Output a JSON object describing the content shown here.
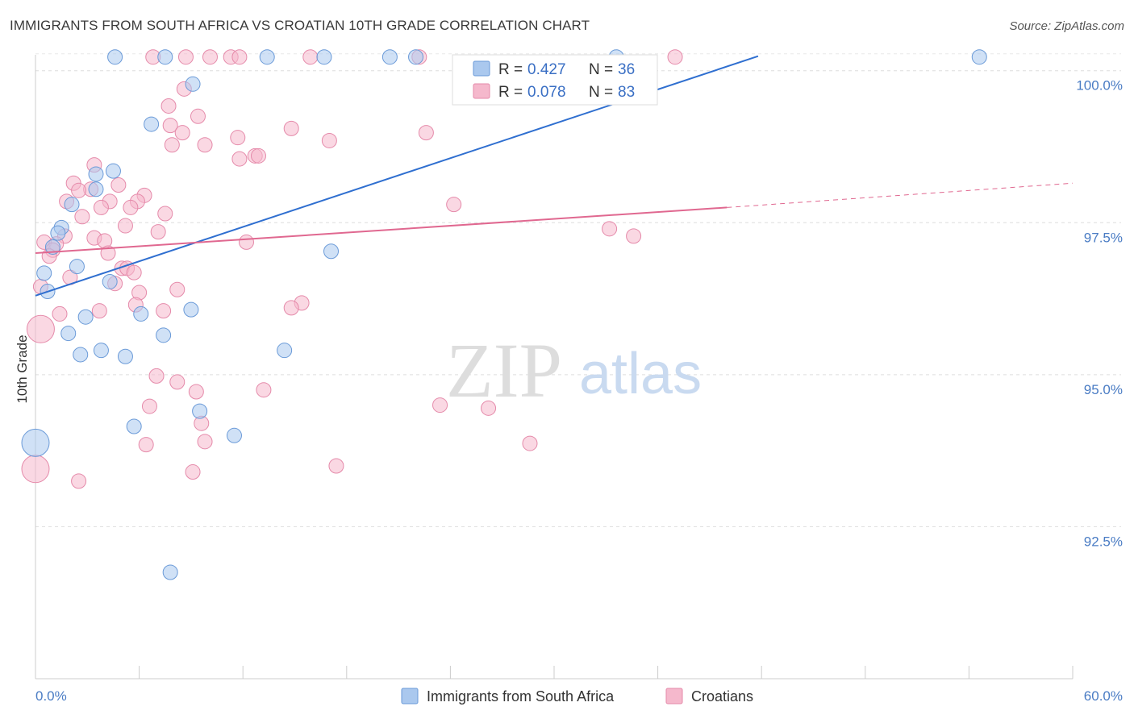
{
  "title": "IMMIGRANTS FROM SOUTH AFRICA VS CROATIAN 10TH GRADE CORRELATION CHART",
  "source": "Source: ZipAtlas.com",
  "watermark": {
    "zip": "ZIP",
    "atlas": "atlas"
  },
  "colors": {
    "blue_fill": "#aac8ee",
    "blue_stroke": "#6a9ad8",
    "blue_line": "#2f6fd0",
    "pink_fill": "#f5b8cc",
    "pink_stroke": "#e58aaa",
    "pink_line": "#e06890",
    "tick_text": "#4a7cc4",
    "grid": "#dddddd"
  },
  "legend": {
    "rows": [
      {
        "r_label": "R =",
        "r_value": "0.427",
        "n_label": "N =",
        "n_value": "36",
        "color": "blue"
      },
      {
        "r_label": "R =",
        "r_value": "0.078",
        "n_label": "N =",
        "n_value": "83",
        "color": "pink"
      }
    ]
  },
  "bottom_legend": [
    {
      "label": "Immigrants from South Africa",
      "color": "blue"
    },
    {
      "label": "Croatians",
      "color": "pink"
    }
  ],
  "chart_data": {
    "type": "scatter",
    "title": "IMMIGRANTS FROM SOUTH AFRICA VS CROATIAN 10TH GRADE CORRELATION CHART",
    "xlabel": "",
    "ylabel": "10th Grade",
    "xlim": [
      0,
      60
    ],
    "ylim": [
      90.0,
      100.5
    ],
    "x_tick_labels": [
      "0.0%",
      "60.0%"
    ],
    "y_ticks": [
      92.5,
      95.0,
      97.5,
      100.0
    ],
    "y_tick_labels": [
      "92.5%",
      "95.0%",
      "97.5%",
      "100.0%"
    ],
    "grid": true,
    "legend_position": "top-center",
    "series": [
      {
        "name": "Immigrants from South Africa",
        "color": "blue",
        "r": 0.427,
        "n": 36,
        "trend": {
          "x": [
            0.0,
            41.8
          ],
          "y": [
            96.3,
            100.0
          ],
          "dashed_to": null
        },
        "points": [
          {
            "x": 4.6,
            "y": 100.0,
            "s": 1
          },
          {
            "x": 7.5,
            "y": 100.0,
            "s": 1
          },
          {
            "x": 13.4,
            "y": 100.0,
            "s": 1
          },
          {
            "x": 16.7,
            "y": 100.0,
            "s": 1
          },
          {
            "x": 20.5,
            "y": 100.0,
            "s": 1
          },
          {
            "x": 22.0,
            "y": 100.0,
            "s": 1
          },
          {
            "x": 33.6,
            "y": 100.0,
            "s": 1
          },
          {
            "x": 54.6,
            "y": 100.0,
            "s": 1
          },
          {
            "x": 9.1,
            "y": 99.78,
            "s": 1
          },
          {
            "x": 6.7,
            "y": 99.12,
            "s": 1
          },
          {
            "x": 4.5,
            "y": 98.35,
            "s": 1
          },
          {
            "x": 3.5,
            "y": 98.3,
            "s": 1
          },
          {
            "x": 3.5,
            "y": 98.05,
            "s": 1
          },
          {
            "x": 2.1,
            "y": 97.8,
            "s": 1
          },
          {
            "x": 1.5,
            "y": 97.42,
            "s": 1
          },
          {
            "x": 1.3,
            "y": 97.33,
            "s": 1
          },
          {
            "x": 1.0,
            "y": 97.1,
            "s": 1
          },
          {
            "x": 17.1,
            "y": 97.03,
            "s": 1
          },
          {
            "x": 2.4,
            "y": 96.78,
            "s": 1
          },
          {
            "x": 0.5,
            "y": 96.67,
            "s": 1
          },
          {
            "x": 4.3,
            "y": 96.53,
            "s": 1
          },
          {
            "x": 0.7,
            "y": 96.37,
            "s": 1
          },
          {
            "x": 9.0,
            "y": 96.07,
            "s": 1
          },
          {
            "x": 6.1,
            "y": 96.0,
            "s": 1
          },
          {
            "x": 2.9,
            "y": 95.95,
            "s": 1
          },
          {
            "x": 1.9,
            "y": 95.68,
            "s": 1
          },
          {
            "x": 7.4,
            "y": 95.65,
            "s": 1
          },
          {
            "x": 3.8,
            "y": 95.4,
            "s": 1
          },
          {
            "x": 14.4,
            "y": 95.4,
            "s": 1
          },
          {
            "x": 2.6,
            "y": 95.33,
            "s": 1
          },
          {
            "x": 5.2,
            "y": 95.3,
            "s": 1
          },
          {
            "x": 9.5,
            "y": 94.4,
            "s": 1
          },
          {
            "x": 5.7,
            "y": 94.15,
            "s": 1
          },
          {
            "x": 11.5,
            "y": 94.0,
            "s": 1
          },
          {
            "x": 0.0,
            "y": 93.88,
            "s": 2
          },
          {
            "x": 7.8,
            "y": 91.75,
            "s": 1
          }
        ]
      },
      {
        "name": "Croatians",
        "color": "pink",
        "r": 0.078,
        "n": 83,
        "trend": {
          "x": [
            0.0,
            40.0
          ],
          "y": [
            97.0,
            97.75
          ],
          "dashed_to": {
            "x": 60.0,
            "y": 98.15
          }
        },
        "points": [
          {
            "x": 6.8,
            "y": 100.0,
            "s": 1
          },
          {
            "x": 8.7,
            "y": 100.0,
            "s": 1
          },
          {
            "x": 10.1,
            "y": 100.0,
            "s": 1
          },
          {
            "x": 11.3,
            "y": 100.0,
            "s": 1
          },
          {
            "x": 11.8,
            "y": 100.0,
            "s": 1
          },
          {
            "x": 15.9,
            "y": 100.0,
            "s": 1
          },
          {
            "x": 22.2,
            "y": 100.0,
            "s": 1
          },
          {
            "x": 37.0,
            "y": 100.0,
            "s": 1
          },
          {
            "x": 8.6,
            "y": 99.7,
            "s": 1
          },
          {
            "x": 7.7,
            "y": 99.42,
            "s": 1
          },
          {
            "x": 9.4,
            "y": 99.25,
            "s": 1
          },
          {
            "x": 7.8,
            "y": 99.1,
            "s": 1
          },
          {
            "x": 8.5,
            "y": 98.98,
            "s": 1
          },
          {
            "x": 14.8,
            "y": 99.05,
            "s": 1
          },
          {
            "x": 22.6,
            "y": 98.98,
            "s": 1
          },
          {
            "x": 11.7,
            "y": 98.9,
            "s": 1
          },
          {
            "x": 17.0,
            "y": 98.85,
            "s": 1
          },
          {
            "x": 7.9,
            "y": 98.78,
            "s": 1
          },
          {
            "x": 9.8,
            "y": 98.78,
            "s": 1
          },
          {
            "x": 12.7,
            "y": 98.6,
            "s": 1
          },
          {
            "x": 12.9,
            "y": 98.6,
            "s": 1
          },
          {
            "x": 11.8,
            "y": 98.55,
            "s": 1
          },
          {
            "x": 3.4,
            "y": 98.45,
            "s": 1
          },
          {
            "x": 2.2,
            "y": 98.15,
            "s": 1
          },
          {
            "x": 4.8,
            "y": 98.12,
            "s": 1
          },
          {
            "x": 3.2,
            "y": 98.05,
            "s": 1
          },
          {
            "x": 2.5,
            "y": 98.03,
            "s": 1
          },
          {
            "x": 6.3,
            "y": 97.95,
            "s": 1
          },
          {
            "x": 1.8,
            "y": 97.85,
            "s": 1
          },
          {
            "x": 4.3,
            "y": 97.85,
            "s": 1
          },
          {
            "x": 5.9,
            "y": 97.85,
            "s": 1
          },
          {
            "x": 3.8,
            "y": 97.75,
            "s": 1
          },
          {
            "x": 5.5,
            "y": 97.75,
            "s": 1
          },
          {
            "x": 24.2,
            "y": 97.8,
            "s": 1
          },
          {
            "x": 7.5,
            "y": 97.65,
            "s": 1
          },
          {
            "x": 2.7,
            "y": 97.6,
            "s": 1
          },
          {
            "x": 5.2,
            "y": 97.45,
            "s": 1
          },
          {
            "x": 7.1,
            "y": 97.35,
            "s": 1
          },
          {
            "x": 33.2,
            "y": 97.4,
            "s": 1
          },
          {
            "x": 1.7,
            "y": 97.28,
            "s": 1
          },
          {
            "x": 3.4,
            "y": 97.25,
            "s": 1
          },
          {
            "x": 4.0,
            "y": 97.2,
            "s": 1
          },
          {
            "x": 34.6,
            "y": 97.28,
            "s": 1
          },
          {
            "x": 0.5,
            "y": 97.18,
            "s": 1
          },
          {
            "x": 1.2,
            "y": 97.15,
            "s": 1
          },
          {
            "x": 12.2,
            "y": 97.18,
            "s": 1
          },
          {
            "x": 1.0,
            "y": 97.05,
            "s": 1
          },
          {
            "x": 4.2,
            "y": 97.0,
            "s": 1
          },
          {
            "x": 0.8,
            "y": 96.95,
            "s": 1
          },
          {
            "x": 5.0,
            "y": 96.75,
            "s": 1
          },
          {
            "x": 5.3,
            "y": 96.75,
            "s": 1
          },
          {
            "x": 5.7,
            "y": 96.68,
            "s": 1
          },
          {
            "x": 2.0,
            "y": 96.6,
            "s": 1
          },
          {
            "x": 4.6,
            "y": 96.5,
            "s": 1
          },
          {
            "x": 0.3,
            "y": 96.45,
            "s": 1
          },
          {
            "x": 8.2,
            "y": 96.4,
            "s": 1
          },
          {
            "x": 6.0,
            "y": 96.35,
            "s": 1
          },
          {
            "x": 15.4,
            "y": 96.18,
            "s": 1
          },
          {
            "x": 5.8,
            "y": 96.15,
            "s": 1
          },
          {
            "x": 14.8,
            "y": 96.1,
            "s": 1
          },
          {
            "x": 3.7,
            "y": 96.05,
            "s": 1
          },
          {
            "x": 7.4,
            "y": 96.05,
            "s": 1
          },
          {
            "x": 1.4,
            "y": 96.0,
            "s": 1
          },
          {
            "x": 0.3,
            "y": 95.75,
            "s": 2
          },
          {
            "x": 7.0,
            "y": 94.98,
            "s": 1
          },
          {
            "x": 8.2,
            "y": 94.88,
            "s": 1
          },
          {
            "x": 13.2,
            "y": 94.75,
            "s": 1
          },
          {
            "x": 9.3,
            "y": 94.72,
            "s": 1
          },
          {
            "x": 23.4,
            "y": 94.5,
            "s": 1
          },
          {
            "x": 6.6,
            "y": 94.48,
            "s": 1
          },
          {
            "x": 26.2,
            "y": 94.45,
            "s": 1
          },
          {
            "x": 9.6,
            "y": 94.2,
            "s": 1
          },
          {
            "x": 9.8,
            "y": 93.9,
            "s": 1
          },
          {
            "x": 6.4,
            "y": 93.85,
            "s": 1
          },
          {
            "x": 28.6,
            "y": 93.87,
            "s": 1
          },
          {
            "x": 17.4,
            "y": 93.5,
            "s": 1
          },
          {
            "x": 0.0,
            "y": 93.45,
            "s": 2
          },
          {
            "x": 9.1,
            "y": 93.4,
            "s": 1
          },
          {
            "x": 2.5,
            "y": 93.25,
            "s": 1
          }
        ]
      }
    ]
  }
}
